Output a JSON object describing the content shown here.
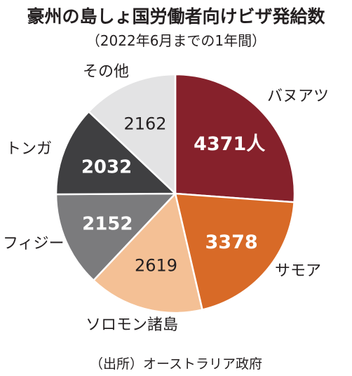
{
  "title": "豪州の島しょ国労働者向けビザ発給数",
  "subtitle": "（2022年6月までの1年間）",
  "source": "（出所）オーストラリア政府",
  "chart_data": {
    "type": "pie",
    "categories": [
      "バヌアツ",
      "サモア",
      "ソロモン諸島",
      "フィジー",
      "トンガ",
      "その他"
    ],
    "values": [
      4371,
      3378,
      2619,
      2152,
      2032,
      2162
    ],
    "value_labels": [
      "4371人",
      "3378",
      "2619",
      "2152",
      "2032",
      "2162"
    ],
    "colors": [
      "#86212b",
      "#d86a27",
      "#f4c095",
      "#7b7b7d",
      "#3f3f41",
      "#e3e3e4"
    ],
    "start": "12 o'clock",
    "direction": "clockwise"
  }
}
